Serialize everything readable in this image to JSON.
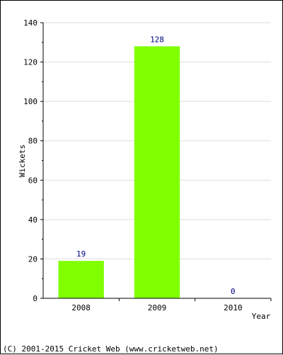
{
  "chart_data": {
    "type": "bar",
    "categories": [
      "2008",
      "2009",
      "2010"
    ],
    "values": [
      19,
      128,
      0
    ],
    "data_labels": [
      "19",
      "128",
      "0"
    ],
    "xlabel": "Year",
    "ylabel": "Wickets",
    "ylim": [
      0,
      140
    ],
    "yticks": [
      "0",
      "20",
      "40",
      "60",
      "80",
      "100",
      "120",
      "140"
    ],
    "grid": true,
    "legend": "none",
    "colors": {
      "bar": "#80ff00",
      "grid": "#dddddd",
      "axis": "#000000",
      "data_label": "#000080",
      "text": "#000000"
    }
  },
  "footer": {
    "copyright": "(C) 2001-2015 Cricket Web (www.cricketweb.net)"
  }
}
